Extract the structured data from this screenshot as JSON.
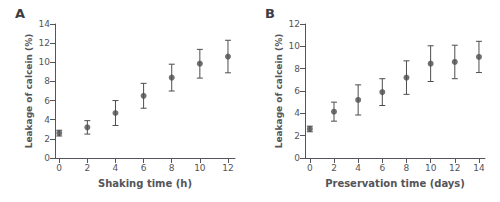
{
  "chart_data": [
    {
      "type": "scatter",
      "title": "A",
      "x": [
        0,
        2,
        4,
        6,
        8,
        10,
        12
      ],
      "values": [
        2.6,
        3.2,
        4.7,
        6.5,
        8.4,
        9.85,
        10.6
      ],
      "yerr": [
        0.3,
        0.7,
        1.3,
        1.3,
        1.4,
        1.5,
        1.7
      ],
      "xlabel": "Shaking time (h)",
      "ylabel": "Leakage of calcein (%)",
      "xlim": [
        -0.3,
        12.5
      ],
      "ylim": [
        0,
        14
      ],
      "xticks": [
        0,
        2,
        4,
        6,
        8,
        10,
        12
      ],
      "yticks": [
        0,
        2,
        4,
        6,
        8,
        10,
        12,
        14
      ],
      "color": "#4d4d4d",
      "marker": "o",
      "grid": false
    },
    {
      "type": "scatter",
      "title": "B",
      "x": [
        0,
        2,
        4,
        6,
        8,
        10,
        12,
        14
      ],
      "values": [
        2.6,
        4.15,
        5.2,
        5.9,
        7.2,
        8.45,
        8.6,
        9.05
      ],
      "yerr": [
        0.25,
        0.85,
        1.35,
        1.2,
        1.5,
        1.6,
        1.5,
        1.4
      ],
      "xlabel": "Preservation time (days)",
      "ylabel": "Leakage of calcein (%)",
      "xlim": [
        -0.4,
        14.5
      ],
      "ylim": [
        0,
        12
      ],
      "xticks": [
        0,
        2,
        4,
        6,
        8,
        10,
        12,
        14
      ],
      "yticks": [
        0,
        2,
        4,
        6,
        8,
        10,
        12
      ],
      "color": "#4d4d4d",
      "marker": "o",
      "grid": false
    }
  ]
}
